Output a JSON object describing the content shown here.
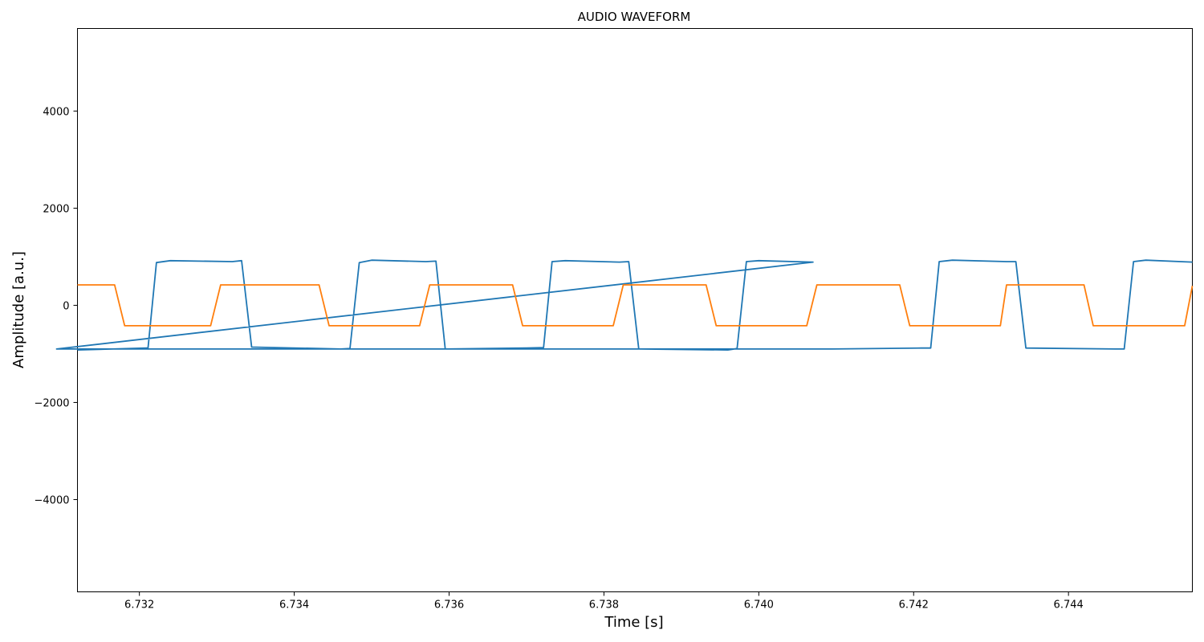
{
  "chart_data": {
    "type": "line",
    "title": "AUDIO WAVEFORM",
    "xlabel": "Time [s]",
    "ylabel": "Amplitude [a.u.]",
    "xlim": [
      6.7312,
      6.7456
    ],
    "ylim": [
      -5900,
      5700
    ],
    "xticks": [
      6.732,
      6.734,
      6.736,
      6.738,
      6.74,
      6.742,
      6.744
    ],
    "xtick_labels": [
      "6.732",
      "6.734",
      "6.736",
      "6.738",
      "6.740",
      "6.742",
      "6.744"
    ],
    "yticks": [
      4000,
      2000,
      0,
      -2000,
      -4000
    ],
    "ytick_labels": [
      "4000",
      "2000",
      "0",
      "−2000",
      "−4000"
    ],
    "grid": false,
    "series": [
      {
        "color": "#1f77b4",
        "x": [
          6.7312,
          6.7321,
          6.73211,
          6.73222,
          6.7324,
          6.7332,
          6.73332,
          6.73345,
          6.7346,
          6.73472,
          6.73484,
          6.735,
          6.7357,
          6.73583,
          6.73595,
          6.737,
          6.73722,
          6.73733,
          6.7375,
          6.7382,
          6.73832,
          6.73845,
          6.7396,
          6.73972,
          6.73984,
          6.74,
          6.7407,
          6.73093,
          6.74095,
          6.7421,
          6.74222,
          6.74233,
          6.7425,
          6.7432,
          6.74332,
          6.74345,
          6.7446,
          6.74472,
          6.74484,
          6.745,
          6.7456
        ],
        "y": [
          -920,
          -880,
          -900,
          880,
          920,
          900,
          920,
          -860,
          -900,
          -890,
          880,
          930,
          900,
          910,
          -900,
          -880,
          -870,
          900,
          920,
          890,
          900,
          -900,
          -920,
          -890,
          900,
          920,
          890,
          -900,
          -900,
          -880,
          -880,
          900,
          930,
          900,
          900,
          -880,
          -900,
          -900,
          900,
          930,
          890
        ]
      },
      {
        "color": "#ff7f0e",
        "x": [
          6.7312,
          6.73168,
          6.73181,
          6.7328,
          6.73292,
          6.73305,
          6.7342,
          6.73432,
          6.73445,
          6.7355,
          6.73562,
          6.73575,
          6.7367,
          6.73682,
          6.73695,
          6.738,
          6.73812,
          6.73825,
          6.7392,
          6.73932,
          6.73945,
          6.7405,
          6.74062,
          6.74075,
          6.7417,
          6.74182,
          6.74195,
          6.743,
          6.74312,
          6.7432,
          6.74342,
          6.7442,
          6.74432,
          6.74445,
          6.7455,
          6.7456
        ],
        "y": [
          420,
          420,
          -420,
          -420,
          -420,
          420,
          420,
          420,
          -420,
          -420,
          -420,
          420,
          420,
          420,
          -420,
          -420,
          -420,
          420,
          420,
          420,
          -420,
          -420,
          -420,
          420,
          420,
          420,
          -420,
          -420,
          -420,
          420,
          420,
          420,
          -420,
          -420,
          -420,
          400
        ]
      }
    ]
  }
}
